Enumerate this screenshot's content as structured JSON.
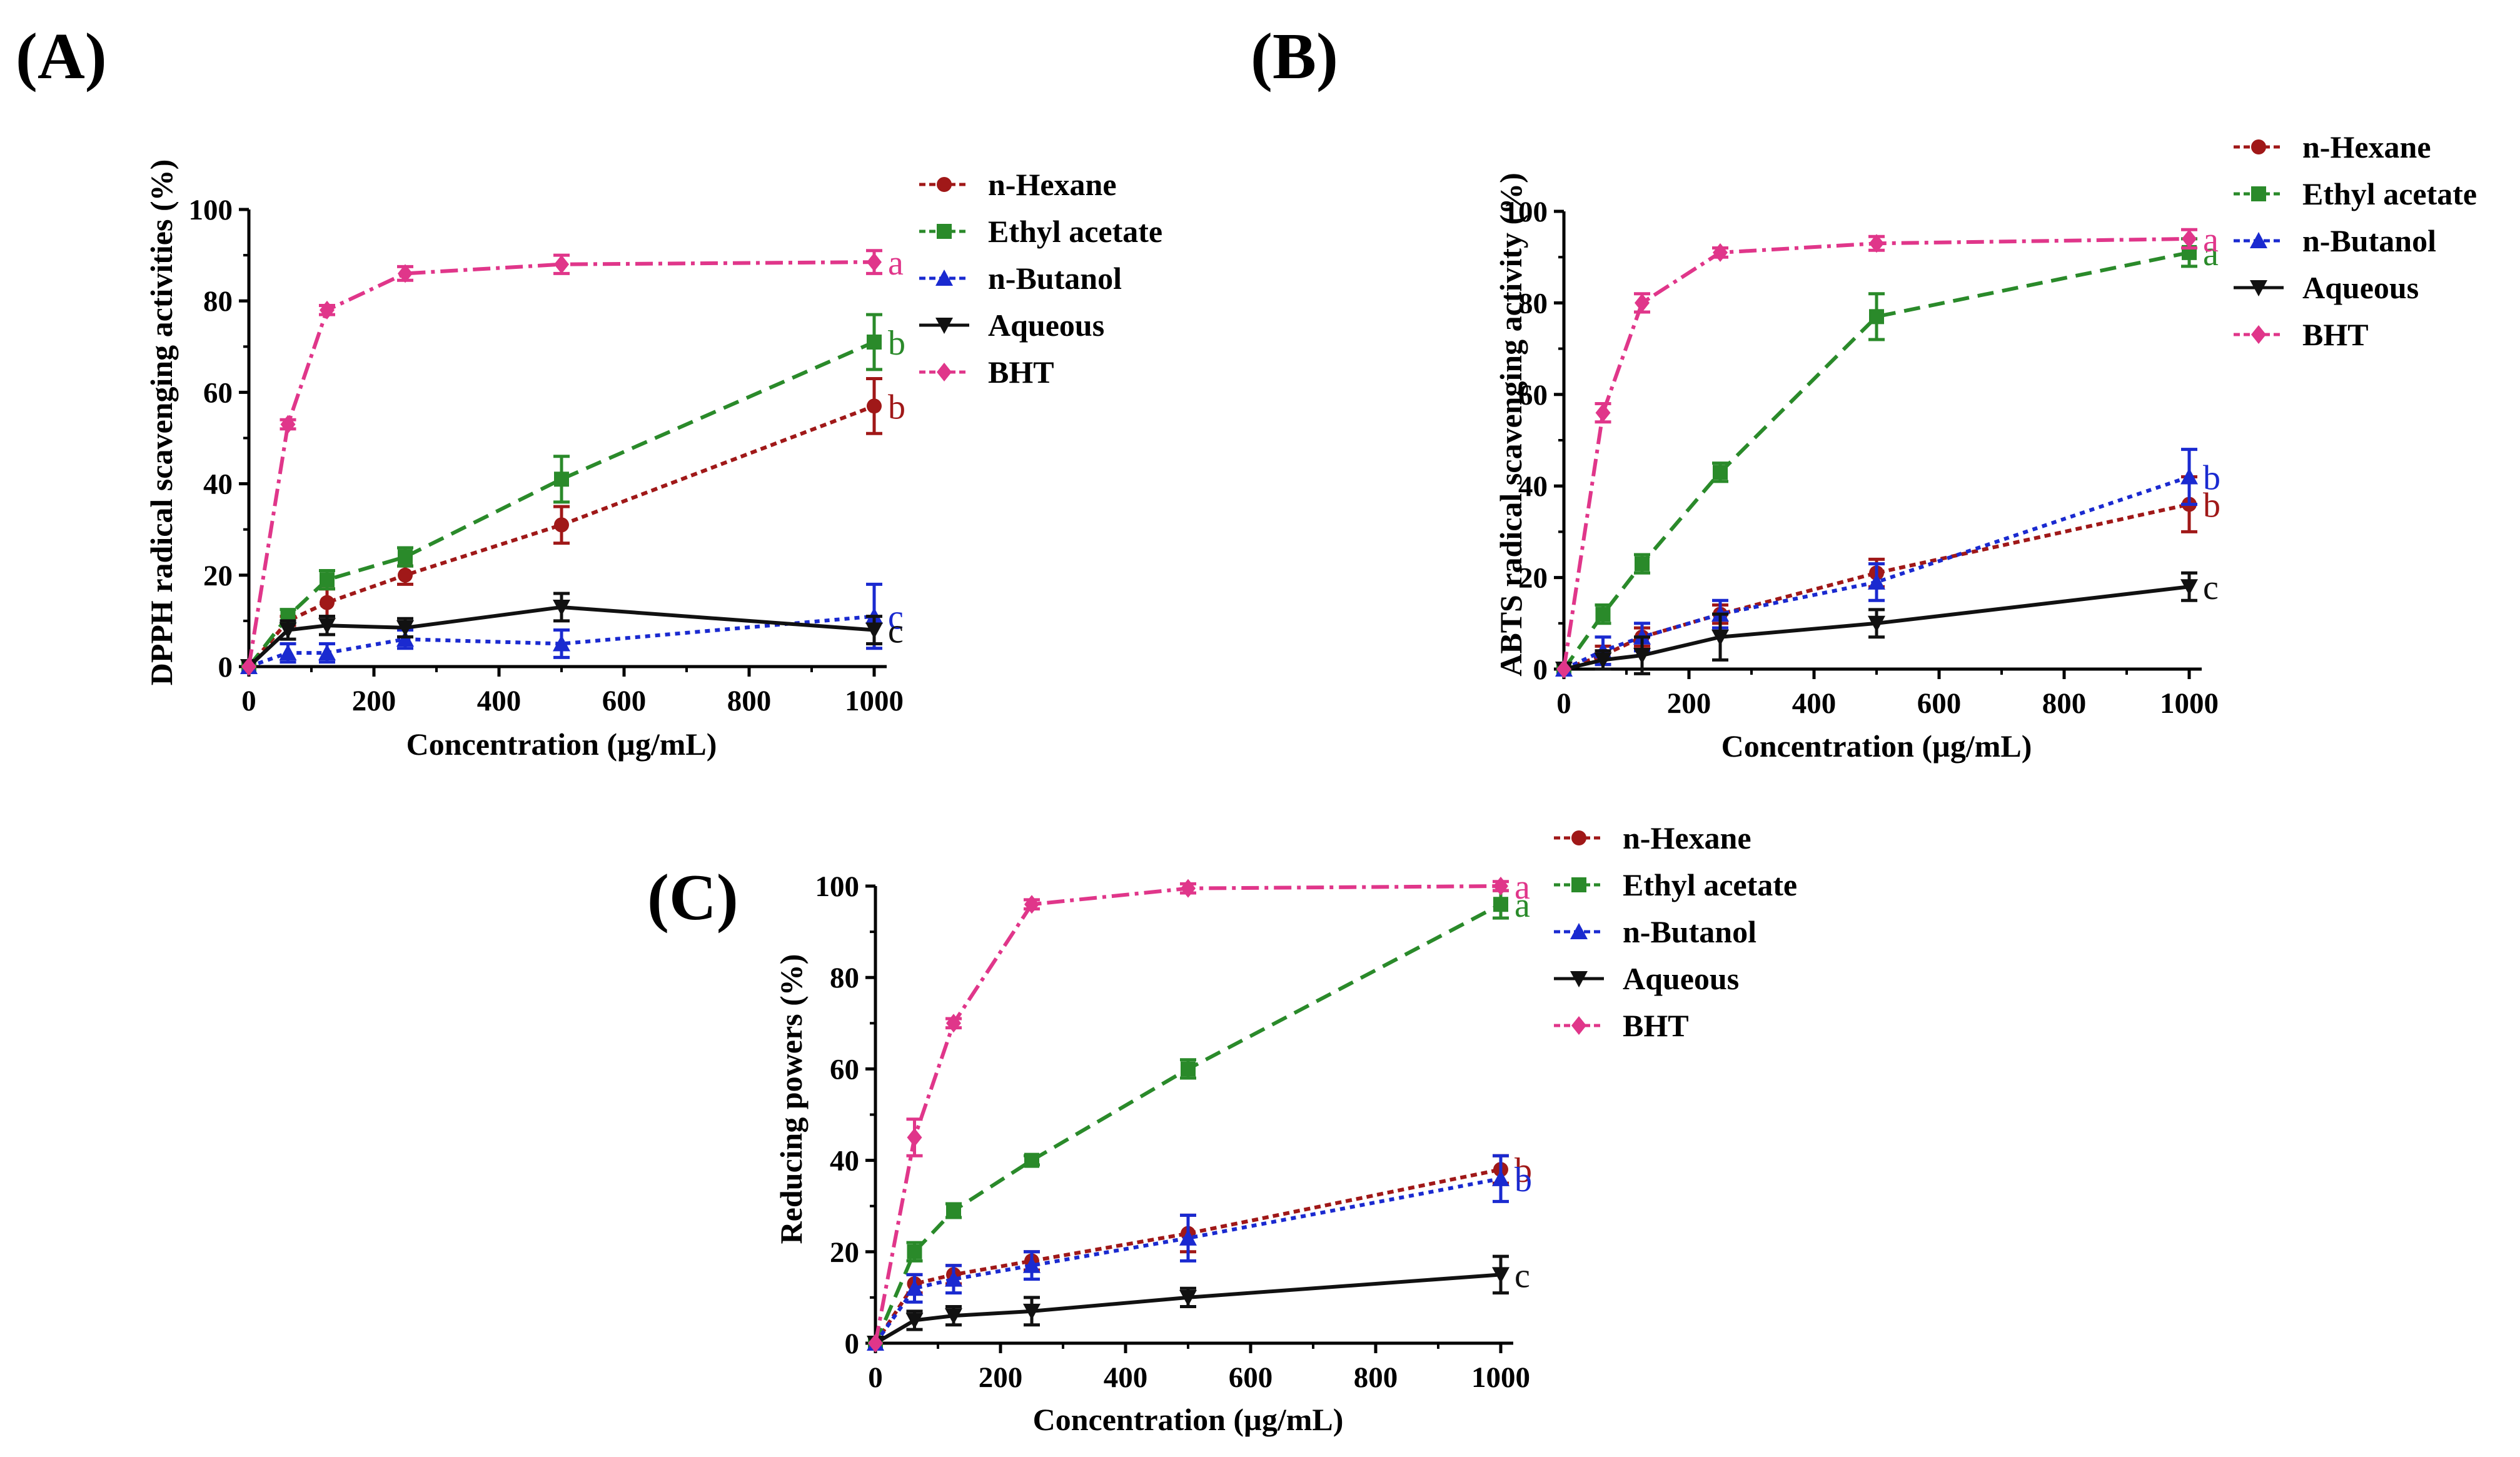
{
  "colors": {
    "hexane": "#a01818",
    "ethyl": "#2a8a2a",
    "butanol": "#1a2ad0",
    "aqueous": "#111111",
    "bht": "#e0368a"
  },
  "chart_data": [
    {
      "type": "line",
      "panel_label": "(A)",
      "xlabel": "Concentration (µg/mL)",
      "ylabel": "DPPH radical scavenging activities (%)",
      "xlim": [
        0,
        1000
      ],
      "ylim": [
        0,
        100
      ],
      "xticks": [
        "0",
        "200",
        "400",
        "600",
        "800",
        "1000"
      ],
      "yticks": [
        "0",
        "20",
        "40",
        "60",
        "80",
        "100"
      ],
      "x": [
        0,
        62.5,
        125,
        250,
        500,
        1000
      ],
      "legend_position": "top-right",
      "series": [
        {
          "name": "n-Hexane",
          "key": "hexane",
          "marker": "circle",
          "dash": "10,7",
          "values": [
            0,
            10,
            14,
            20,
            31,
            57
          ],
          "errors": [
            0,
            1,
            3,
            2,
            4,
            6
          ],
          "sig": "b"
        },
        {
          "name": "Ethyl acetate",
          "key": "ethyl",
          "marker": "square",
          "dash": "26,14",
          "values": [
            0,
            11,
            19,
            24,
            41,
            71
          ],
          "errors": [
            0,
            1.5,
            2,
            2,
            5,
            6
          ],
          "sig": "b"
        },
        {
          "name": "n-Butanol",
          "key": "butanol",
          "marker": "triangle",
          "dash": "8,8",
          "values": [
            0,
            3,
            3,
            6,
            5,
            11
          ],
          "errors": [
            0,
            2,
            2,
            2,
            3,
            7
          ],
          "sig": "c"
        },
        {
          "name": "Aqueous",
          "key": "aqueous",
          "marker": "triangle-down",
          "dash": "",
          "values": [
            0,
            8,
            9,
            8.5,
            13,
            8
          ],
          "errors": [
            0,
            2,
            2,
            2,
            3,
            3
          ],
          "sig": "c"
        },
        {
          "name": "BHT",
          "key": "bht",
          "marker": "diamond",
          "dash": "28,9,6,9",
          "values": [
            0,
            53,
            78,
            86,
            88,
            88.5
          ],
          "errors": [
            0,
            1,
            1,
            1.5,
            2,
            2.5
          ],
          "sig": "a"
        }
      ]
    },
    {
      "type": "line",
      "panel_label": "(B)",
      "xlabel": "Concentration (µg/mL)",
      "ylabel": "ABTS radical scavenging activity (%)",
      "xlim": [
        0,
        1000
      ],
      "ylim": [
        0,
        100
      ],
      "xticks": [
        "0",
        "200",
        "400",
        "600",
        "800",
        "1000"
      ],
      "yticks": [
        "0",
        "20",
        "40",
        "60",
        "80",
        "100"
      ],
      "x": [
        0,
        62.5,
        125,
        250,
        500,
        1000
      ],
      "legend_position": "top-right",
      "series": [
        {
          "name": "n-Hexane",
          "key": "hexane",
          "marker": "circle",
          "dash": "10,7",
          "values": [
            0,
            3,
            7,
            12,
            21,
            36
          ],
          "errors": [
            0,
            2,
            2,
            2,
            3,
            6
          ],
          "sig": "b"
        },
        {
          "name": "Ethyl acetate",
          "key": "ethyl",
          "marker": "square",
          "dash": "26,14",
          "values": [
            0,
            12,
            23,
            43,
            77,
            91
          ],
          "errors": [
            0,
            2,
            2,
            2,
            5,
            3
          ],
          "sig": "a"
        },
        {
          "name": "n-Butanol",
          "key": "butanol",
          "marker": "triangle",
          "dash": "8,8",
          "values": [
            0,
            4,
            7,
            12,
            19,
            42
          ],
          "errors": [
            0,
            3,
            3,
            3,
            4,
            6
          ],
          "sig": "b"
        },
        {
          "name": "Aqueous",
          "key": "aqueous",
          "marker": "triangle-down",
          "dash": "",
          "values": [
            0,
            2,
            3,
            7,
            10,
            18
          ],
          "errors": [
            0,
            2,
            4,
            5,
            3,
            3
          ],
          "sig": "c"
        },
        {
          "name": "BHT",
          "key": "bht",
          "marker": "diamond",
          "dash": "28,9,6,9",
          "values": [
            0,
            56,
            80,
            91,
            93,
            94
          ],
          "errors": [
            0,
            2,
            2,
            1,
            1.5,
            2
          ],
          "sig": "a"
        }
      ]
    },
    {
      "type": "line",
      "panel_label": "(C)",
      "xlabel": "Concentration (µg/mL)",
      "ylabel": "Reducing powers (%)",
      "xlim": [
        0,
        1000
      ],
      "ylim": [
        0,
        100
      ],
      "xticks": [
        "0",
        "200",
        "400",
        "600",
        "800",
        "1000"
      ],
      "yticks": [
        "0",
        "20",
        "40",
        "60",
        "80",
        "100"
      ],
      "x": [
        0,
        62.5,
        125,
        250,
        500,
        1000
      ],
      "legend_position": "top-right",
      "series": [
        {
          "name": "n-Hexane",
          "key": "hexane",
          "marker": "circle",
          "dash": "10,7",
          "values": [
            0,
            13,
            15,
            18,
            24,
            38
          ],
          "errors": [
            0,
            2,
            2,
            2,
            4,
            3
          ],
          "sig": "b"
        },
        {
          "name": "Ethyl acetate",
          "key": "ethyl",
          "marker": "square",
          "dash": "26,14",
          "values": [
            0,
            20,
            29,
            40,
            60,
            96
          ],
          "errors": [
            0,
            2,
            1.5,
            1,
            2,
            3
          ],
          "sig": "a"
        },
        {
          "name": "n-Butanol",
          "key": "butanol",
          "marker": "triangle",
          "dash": "8,8",
          "values": [
            0,
            12,
            14,
            17,
            23,
            36
          ],
          "errors": [
            0,
            3,
            3,
            3,
            5,
            5
          ],
          "sig": "b"
        },
        {
          "name": "Aqueous",
          "key": "aqueous",
          "marker": "triangle-down",
          "dash": "",
          "values": [
            0,
            5,
            6,
            7,
            10,
            15
          ],
          "errors": [
            0,
            2,
            2,
            3,
            2,
            4
          ],
          "sig": "c"
        },
        {
          "name": "BHT",
          "key": "bht",
          "marker": "diamond",
          "dash": "28,9,6,9",
          "values": [
            0,
            45,
            70,
            96,
            99.5,
            100
          ],
          "errors": [
            0,
            4,
            1,
            1,
            1,
            1
          ],
          "sig": "a"
        }
      ]
    }
  ]
}
